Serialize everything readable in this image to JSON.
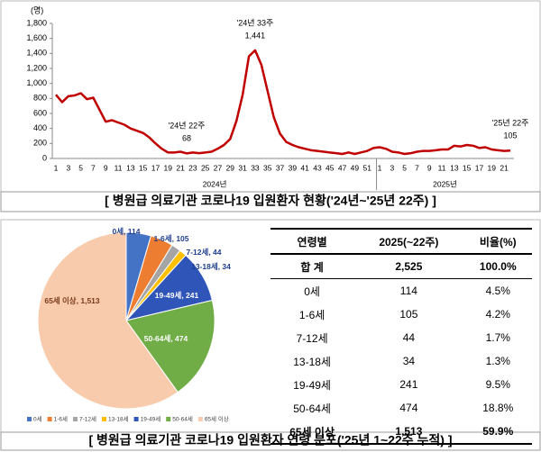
{
  "chart_data": [
    {
      "type": "line",
      "y_unit": "(명)",
      "categories": [
        "1",
        null,
        "3",
        null,
        "5",
        null,
        "7",
        null,
        "9",
        null,
        "11",
        null,
        "13",
        null,
        "15",
        null,
        "17",
        null,
        "19",
        null,
        "21",
        null,
        "23",
        null,
        "25",
        null,
        "27",
        null,
        "29",
        null,
        "31",
        null,
        "33",
        null,
        "35",
        null,
        "37",
        null,
        "39",
        null,
        "41",
        null,
        "43",
        null,
        "45",
        null,
        "47",
        null,
        "49",
        null,
        "51",
        null,
        "1",
        null,
        "3",
        null,
        "5",
        null,
        "7",
        null,
        "9",
        null,
        "11",
        null,
        "13",
        null,
        "15",
        null,
        "17",
        null,
        "19",
        null,
        "21",
        null
      ],
      "groups": [
        {
          "label": "2024년",
          "size": 52
        },
        {
          "label": "2025년",
          "size": 22
        }
      ],
      "series": [
        {
          "color": "#c00000",
          "values": [
            850,
            750,
            830,
            840,
            870,
            790,
            810,
            650,
            490,
            510,
            480,
            450,
            400,
            370,
            340,
            280,
            200,
            130,
            80,
            80,
            90,
            68,
            80,
            70,
            80,
            90,
            130,
            180,
            260,
            500,
            850,
            1360,
            1441,
            1250,
            900,
            550,
            330,
            220,
            180,
            150,
            130,
            110,
            100,
            90,
            80,
            70,
            60,
            80,
            60,
            80,
            100,
            140,
            150,
            130,
            90,
            80,
            60,
            70,
            90,
            100,
            100,
            110,
            120,
            120,
            170,
            160,
            180,
            170,
            140,
            150,
            120,
            110,
            100,
            105
          ],
          "value_labels": [
            null,
            null,
            null,
            null,
            null,
            null,
            null,
            null,
            null,
            null,
            null,
            null,
            null,
            null,
            null,
            null,
            null,
            null,
            null,
            null,
            null,
            "68",
            null,
            null,
            null,
            null,
            null,
            null,
            null,
            null,
            null,
            null,
            "1,441",
            null,
            null,
            null,
            null,
            null,
            null,
            null,
            null,
            null,
            null,
            null,
            null,
            null,
            null,
            null,
            null,
            null,
            null,
            null,
            null,
            null,
            null,
            null,
            null,
            null,
            null,
            null,
            null,
            null,
            null,
            null,
            null,
            null,
            null,
            null,
            null,
            null,
            null,
            null,
            null,
            "105"
          ]
        }
      ],
      "annotations": [
        "'24년 22주",
        "'24년 33주",
        "'25년 22주"
      ],
      "ylim": [
        0,
        1800
      ],
      "yticks": [
        0,
        200,
        400,
        600,
        800,
        {
          "value": 1000,
          "label": "1,000"
        },
        {
          "value": 1200,
          "label": "1,200"
        },
        {
          "value": 1400,
          "label": "1,400"
        },
        {
          "value": 1600,
          "label": "1,600"
        },
        {
          "value": 1800,
          "label": "1,800"
        }
      ],
      "caption": "[ 병원급 의료기관 코로나19 입원환자 현황('24년~'25년 22주) ]"
    },
    {
      "type": "pie",
      "categories": [
        "0세",
        "1-6세",
        "7-12세",
        "13-18세",
        "19-49세",
        "50-64세",
        "65세 이상"
      ],
      "values": [
        114,
        105,
        44,
        34,
        241,
        474,
        1513
      ],
      "value_labels": [
        "114",
        "105",
        "44",
        "34",
        "241",
        "474",
        "1,513"
      ],
      "colors": [
        "#4472c4",
        "#ed7d31",
        "#a5a5a5",
        "#ffc000",
        "#2f55b8",
        "#70ad47",
        "#f8cbad"
      ],
      "legend": "bottom"
    }
  ],
  "table": {
    "header": [
      "연령별",
      "2025(~22주)",
      "비율(%)"
    ],
    "rows": [
      [
        "합 계",
        "2,525",
        "100.0%"
      ],
      [
        "0세",
        "114",
        "4.5%"
      ],
      [
        "1-6세",
        "105",
        "4.2%"
      ],
      [
        "7-12세",
        "44",
        "1.7%"
      ],
      [
        "13-18세",
        "34",
        "1.3%"
      ],
      [
        "19-49세",
        "241",
        "9.5%"
      ],
      [
        "50-64세",
        "474",
        "18.8%"
      ],
      [
        "65세 이상",
        "1,513",
        "59.9%"
      ]
    ]
  },
  "caption": "[ 병원급 의료기관 코로나19 입원환자 연령 분포('25년 1~22주 누적) ]"
}
